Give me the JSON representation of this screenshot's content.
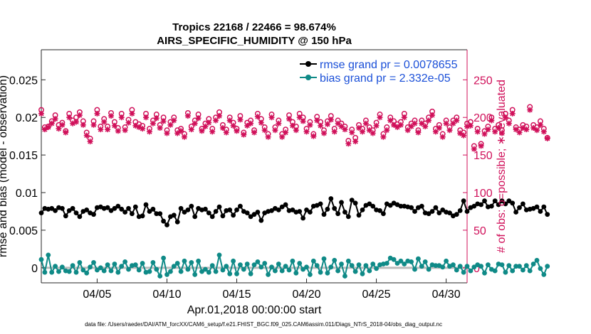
{
  "chart_data": {
    "type": "line",
    "title_line1": "Tropics 22168 / 22466 = 98.674%",
    "title_line2": "AIRS_SPECIFIC_HUMIDITY @ 150 hPa",
    "xlabel": "Apr.01,2018 00:00:00 start",
    "ylabel_left": "rmse and bias (model - observation)",
    "ylabel_right": "# of obs: o=possible; ∗=evaluated",
    "footer": "data file: /Users/raeder/DAI/ATM_forcXX/CAM6_setup/f.e21.FHIST_BGC.f09_025.CAM6assim.011/Diags_NTrS_2018-04/obs_diag_output.nc",
    "xlim": [
      1,
      31.5
    ],
    "x_ticks": [
      5,
      10,
      15,
      20,
      25,
      30
    ],
    "x_tick_labels": [
      "04/05",
      "04/10",
      "04/15",
      "04/20",
      "04/25",
      "04/30"
    ],
    "ylim_left": [
      -0.002,
      0.029
    ],
    "y_ticks_left": [
      0,
      0.005,
      0.01,
      0.015,
      0.02,
      0.025
    ],
    "y_tick_labels_left": [
      "0",
      "0.005",
      "0.01",
      "0.015",
      "0.02",
      "0.025"
    ],
    "ylim_right": [
      -20,
      290
    ],
    "y_ticks_right": [
      0,
      50,
      100,
      150,
      200,
      250
    ],
    "y_tick_labels_right": [
      "0",
      "50",
      "100",
      "150",
      "200",
      "250"
    ],
    "x_start": 1,
    "x_step": 0.25,
    "zero_line": 0,
    "legend": {
      "location": "top-right",
      "rmse_label": "rmse grand pr = 0.0078655",
      "bias_label": "bias grand pr = 2.332e-05"
    },
    "colors": {
      "rmse": "#000000",
      "bias": "#0f8a87",
      "obs": "#d0105a",
      "legend_text": "#1a4fd8",
      "zero_line": "#bbbbbb"
    },
    "series": [
      {
        "name": "rmse",
        "axis": "left",
        "values": [
          0.0073,
          0.0079,
          0.0078,
          0.0079,
          0.0076,
          0.008,
          0.0079,
          0.0069,
          0.0076,
          0.0079,
          0.0073,
          0.0068,
          0.0075,
          0.0077,
          0.0073,
          0.0071,
          0.008,
          0.0081,
          0.0079,
          0.008,
          0.0076,
          0.0079,
          0.0082,
          0.0078,
          0.0074,
          0.0079,
          0.0072,
          0.0081,
          0.0068,
          0.0069,
          0.0084,
          0.0075,
          0.0078,
          0.0072,
          0.0072,
          0.0062,
          0.0057,
          0.0068,
          0.007,
          0.0061,
          0.0079,
          0.0074,
          0.0077,
          0.0082,
          0.0068,
          0.0079,
          0.0077,
          0.0078,
          0.0073,
          0.0068,
          0.0075,
          0.0081,
          0.0069,
          0.0076,
          0.0077,
          0.007,
          0.0077,
          0.0082,
          0.0075,
          0.0073,
          0.0068,
          0.0071,
          0.0074,
          0.0063,
          0.0073,
          0.0075,
          0.0076,
          0.0079,
          0.0077,
          0.0081,
          0.0084,
          0.0076,
          0.0077,
          0.0074,
          0.0075,
          0.0066,
          0.0077,
          0.0074,
          0.0082,
          0.0083,
          0.0085,
          0.0071,
          0.0078,
          0.0092,
          0.0079,
          0.0072,
          0.0087,
          0.0074,
          0.0068,
          0.009,
          0.0086,
          0.007,
          0.0077,
          0.0083,
          0.0085,
          0.0082,
          0.0077,
          0.0076,
          0.0072,
          0.0085,
          0.0083,
          0.0086,
          0.0084,
          0.0082,
          0.0082,
          0.0081,
          0.008,
          0.0075,
          0.008,
          0.0082,
          0.0073,
          0.0072,
          0.0075,
          0.008,
          0.0073,
          0.0077,
          0.0074,
          0.0073,
          0.0069,
          0.0071,
          0.0076,
          0.0089,
          0.0075,
          0.008,
          0.0082,
          0.0085,
          0.0084,
          0.0089,
          0.0081,
          0.0082,
          0.0089,
          0.0084,
          0.0089,
          0.0085,
          0.0089,
          0.0086,
          0.0074,
          0.008,
          0.0085,
          0.0077,
          0.0078,
          0.0079,
          0.0081,
          0.0075,
          0.0081,
          0.0071
        ]
      },
      {
        "name": "bias",
        "axis": "left",
        "values": [
          0.0011,
          -0.0006,
          0.0017,
          -0.0006,
          0.0002,
          -0.0005,
          0.0001,
          -0.0004,
          -0.0005,
          0.0003,
          -0.0006,
          0.0007,
          -0.0003,
          -0.0007,
          0.0001,
          0.0007,
          -0.0003,
          0.0,
          -0.0004,
          0.0004,
          -0.0004,
          0.0005,
          -0.0006,
          0.0002,
          0.0008,
          -0.0002,
          0.0003,
          0.0004,
          -0.0003,
          0.0006,
          -0.0006,
          -0.0005,
          0.0007,
          -0.0002,
          -0.0011,
          0.0013,
          -0.0009,
          -0.0005,
          0.0002,
          0.0006,
          -0.0005,
          0.0009,
          -0.0002,
          0.0007,
          -0.0009,
          0.0009,
          -0.0005,
          -0.0002,
          -0.0006,
          0.0003,
          -0.0005,
          0.0017,
          -0.0003,
          0.0002,
          -0.0008,
          0.0009,
          -0.0008,
          0.0004,
          -0.0002,
          0.0005,
          -0.0008,
          0.0004,
          0.0008,
          0.0001,
          0.0006,
          -0.0009,
          0.0001,
          -0.0004,
          0.0005,
          -0.0004,
          0.0002,
          -0.0003,
          0.0009,
          -0.0007,
          0.0006,
          -0.0002,
          0.0001,
          -0.0009,
          0.0009,
          0.0003,
          -0.0006,
          0.0012,
          -0.0007,
          0.0001,
          0.001,
          -0.0004,
          0.0005,
          -0.0011,
          0.0009,
          0.0003,
          -0.0005,
          0.0004,
          -0.0008,
          0.0003,
          -0.0004,
          0.0005,
          -0.0001,
          0.0004,
          0.0005,
          0.0006,
          0.0013,
          0.0011,
          0.0006,
          0.0009,
          0.0005,
          0.0009,
          0.0008,
          -0.0002,
          0.0012,
          0.0002,
          0.0008,
          -0.0002,
          0.0004,
          0.0003,
          0.0003,
          0.0001,
          0.0009,
          0.0002,
          0.0004,
          -0.0003,
          0.0002,
          -0.0006,
          0.0002,
          -0.0004,
          0.0001,
          0.0004,
          0.0002,
          -0.0007,
          0.0004,
          -0.0002,
          -0.0004,
          0.0005,
          0.0004,
          -0.0006,
          0.0003,
          -0.0004,
          0.0002,
          0.0002,
          -0.0003,
          0.0003,
          -0.0004,
          0.0005,
          0.001,
          -0.0001,
          -0.0009,
          0.0002
        ]
      },
      {
        "name": "obs_possible",
        "axis": "right",
        "values": [
          210,
          187,
          188,
          195,
          203,
          190,
          193,
          182,
          205,
          196,
          200,
          207,
          195,
          180,
          172,
          195,
          210,
          188,
          198,
          188,
          206,
          194,
          186,
          205,
          187,
          197,
          210,
          194,
          191,
          189,
          205,
          185,
          196,
          204,
          190,
          200,
          183,
          194,
          200,
          183,
          185,
          178,
          206,
          188,
          196,
          204,
          185,
          192,
          198,
          185,
          200,
          207,
          190,
          184,
          200,
          193,
          185,
          202,
          180,
          193,
          196,
          183,
          205,
          198,
          187,
          178,
          204,
          187,
          196,
          178,
          184,
          203,
          194,
          188,
          205,
          200,
          185,
          194,
          178,
          201,
          194,
          183,
          195,
          202,
          185,
          196,
          192,
          188,
          169,
          184,
          173,
          190,
          185,
          196,
          187,
          183,
          193,
          204,
          178,
          187,
          200,
          195,
          191,
          194,
          205,
          187,
          192,
          196,
          183,
          196,
          192,
          200,
          208,
          185,
          190,
          178,
          196,
          187,
          196,
          200,
          183,
          180,
          192,
          194,
          162,
          185,
          165,
          182,
          188,
          200,
          185,
          190,
          183,
          205,
          196,
          210,
          187,
          184,
          190,
          188,
          214,
          190,
          187,
          195,
          185,
          173
        ]
      },
      {
        "name": "obs_evaluated",
        "axis": "right",
        "values": [
          205,
          184,
          187,
          192,
          198,
          185,
          190,
          180,
          200,
          192,
          194,
          203,
          190,
          176,
          168,
          190,
          205,
          184,
          194,
          184,
          202,
          189,
          182,
          200,
          183,
          193,
          205,
          189,
          187,
          185,
          200,
          181,
          192,
          199,
          186,
          195,
          179,
          190,
          196,
          179,
          182,
          174,
          202,
          184,
          192,
          199,
          182,
          188,
          193,
          181,
          196,
          202,
          186,
          180,
          196,
          189,
          182,
          197,
          177,
          189,
          192,
          180,
          201,
          193,
          183,
          174,
          200,
          183,
          192,
          174,
          180,
          198,
          189,
          183,
          200,
          195,
          181,
          190,
          175,
          196,
          189,
          179,
          191,
          197,
          181,
          192,
          188,
          184,
          165,
          180,
          168,
          186,
          181,
          192,
          183,
          179,
          189,
          200,
          174,
          183,
          196,
          190,
          187,
          190,
          200,
          183,
          188,
          192,
          180,
          192,
          188,
          196,
          203,
          181,
          186,
          174,
          192,
          183,
          192,
          196,
          179,
          176,
          188,
          189,
          158,
          181,
          162,
          178,
          184,
          196,
          181,
          186,
          179,
          200,
          192,
          205,
          184,
          180,
          186,
          184,
          210,
          186,
          183,
          190,
          181,
          172
        ]
      }
    ]
  }
}
